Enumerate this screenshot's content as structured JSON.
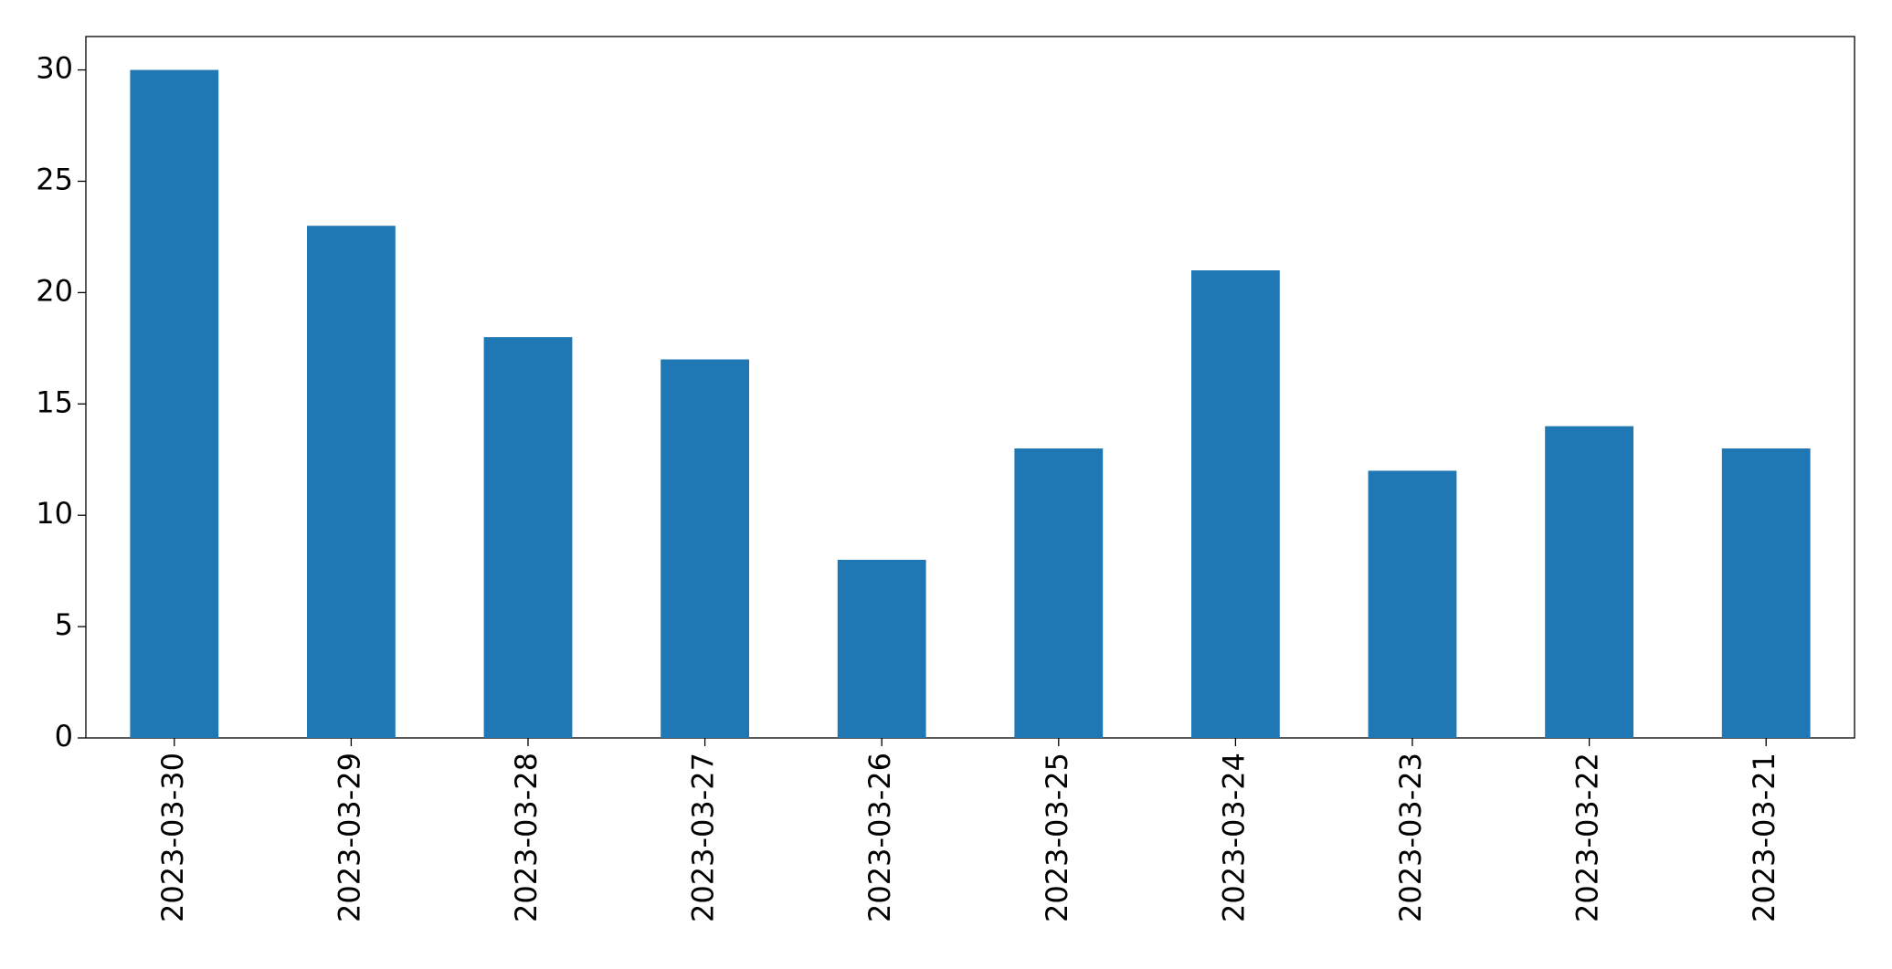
{
  "chart_data": {
    "type": "bar",
    "categories": [
      "2023-03-30",
      "2023-03-29",
      "2023-03-28",
      "2023-03-27",
      "2023-03-26",
      "2023-03-25",
      "2023-03-24",
      "2023-03-23",
      "2023-03-22",
      "2023-03-21"
    ],
    "values": [
      30,
      23,
      18,
      17,
      8,
      13,
      21,
      12,
      14,
      13
    ],
    "color": "#1f77b4",
    "ylim": [
      0,
      31.5
    ],
    "yticks": [
      0,
      5,
      10,
      15,
      20,
      25,
      30
    ],
    "grid": false
  }
}
